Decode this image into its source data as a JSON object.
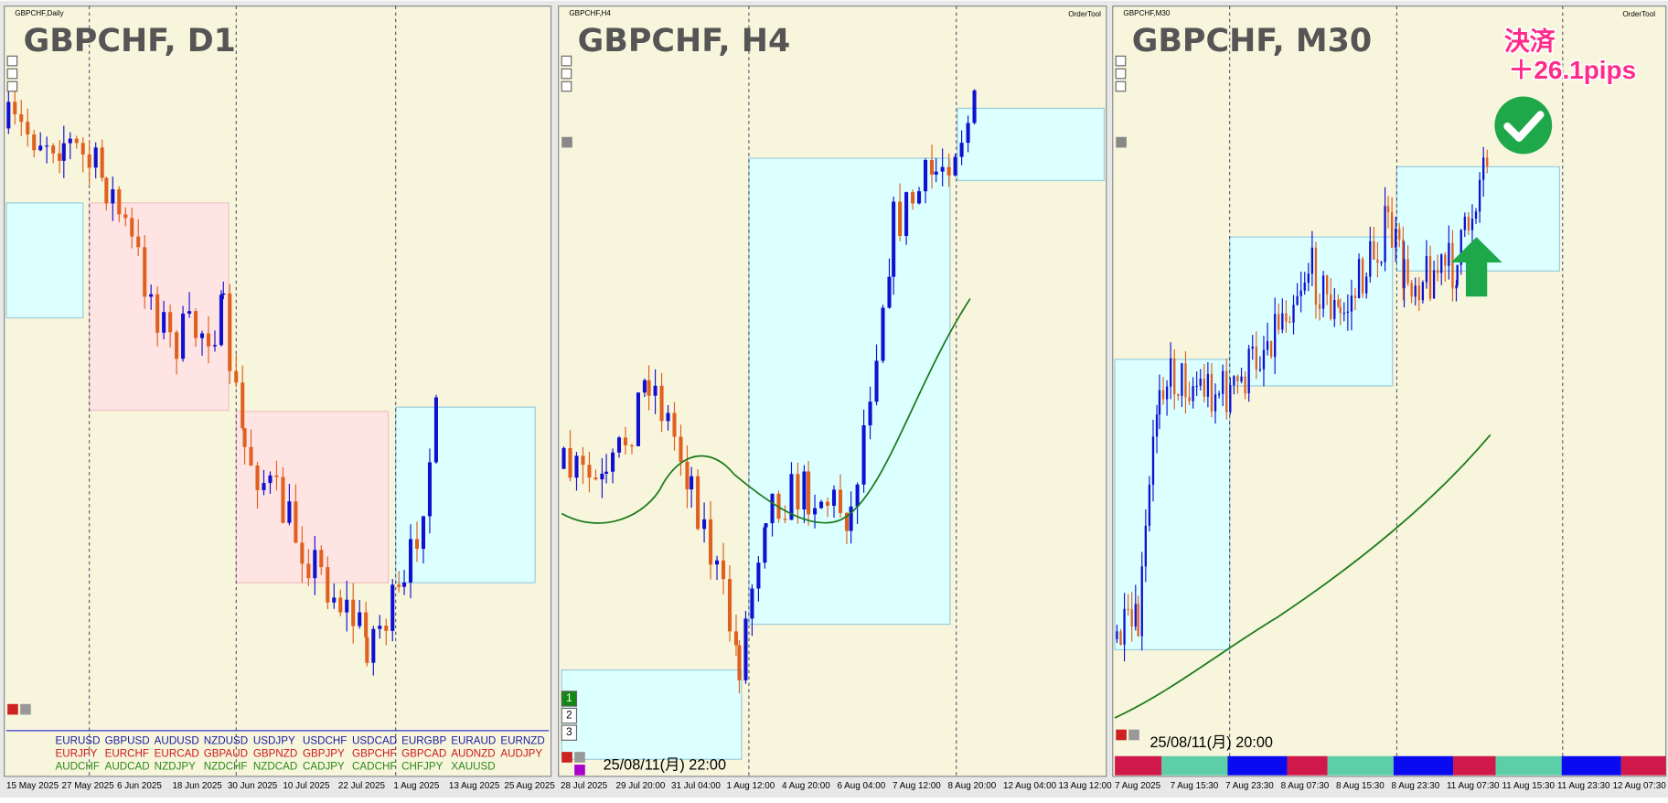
{
  "panels": [
    {
      "caption": "GBPCHF,Daily",
      "heading": "GBPCHF, D1",
      "dates": [
        "15 May 2025",
        "27 May 2025",
        "6 Jun 2025",
        "18 Jun 2025",
        "30 Jun 2025",
        "10 Jul 2025",
        "22 Jul 2025",
        "1 Aug 2025",
        "13 Aug 2025",
        "25 Aug 2025"
      ]
    },
    {
      "caption": "GBPCHF,H4",
      "tool": "OrderTool",
      "heading": "GBPCHF, H4",
      "buttons": [
        "1",
        "2",
        "3"
      ],
      "timestamp": "25/08/11(月) 22:00",
      "dates": [
        "28 Jul 2025",
        "29 Jul 20:00",
        "31 Jul 04:00",
        "1 Aug 12:00",
        "4 Aug 20:00",
        "6 Aug 04:00",
        "7 Aug 12:00",
        "8 Aug 20:00",
        "12 Aug 04:00",
        "13 Aug 12:00"
      ]
    },
    {
      "caption": "GBPCHF,M30",
      "tool": "OrderTool",
      "heading": "GBPCHF, M30",
      "timestamp": "25/08/11(月) 20:00",
      "annotation": [
        "決済",
        "＋26.1pips"
      ],
      "dates": [
        "7 Aug 2025",
        "7 Aug 15:30",
        "7 Aug 23:30",
        "8 Aug 07:30",
        "8 Aug 15:30",
        "8 Aug 23:30",
        "11 Aug 07:30",
        "11 Aug 15:30",
        "11 Aug 23:30",
        "12 Aug 07:30"
      ]
    }
  ],
  "pairs": [
    [
      "EURUSD",
      "GBPUSD",
      "AUDUSD",
      "NZDUSD",
      "USDJPY",
      "USDCHF",
      "USDCAD",
      "EURGBP",
      "EURAUD",
      "EURNZD"
    ],
    [
      "EURJPY",
      "EURCHF",
      "EURCAD",
      "GBPAUD",
      "GBPNZD",
      "GBPJPY",
      "GBPCHF",
      "GBPCAD",
      "AUDNZD",
      "AUDJPY"
    ],
    [
      "AUDCHF",
      "AUDCAD",
      "NZDJPY",
      "NZDCHF",
      "NZDCAD",
      "CADJPY",
      "CADCHF",
      "CHFJPY",
      "XAUUSD"
    ]
  ]
}
